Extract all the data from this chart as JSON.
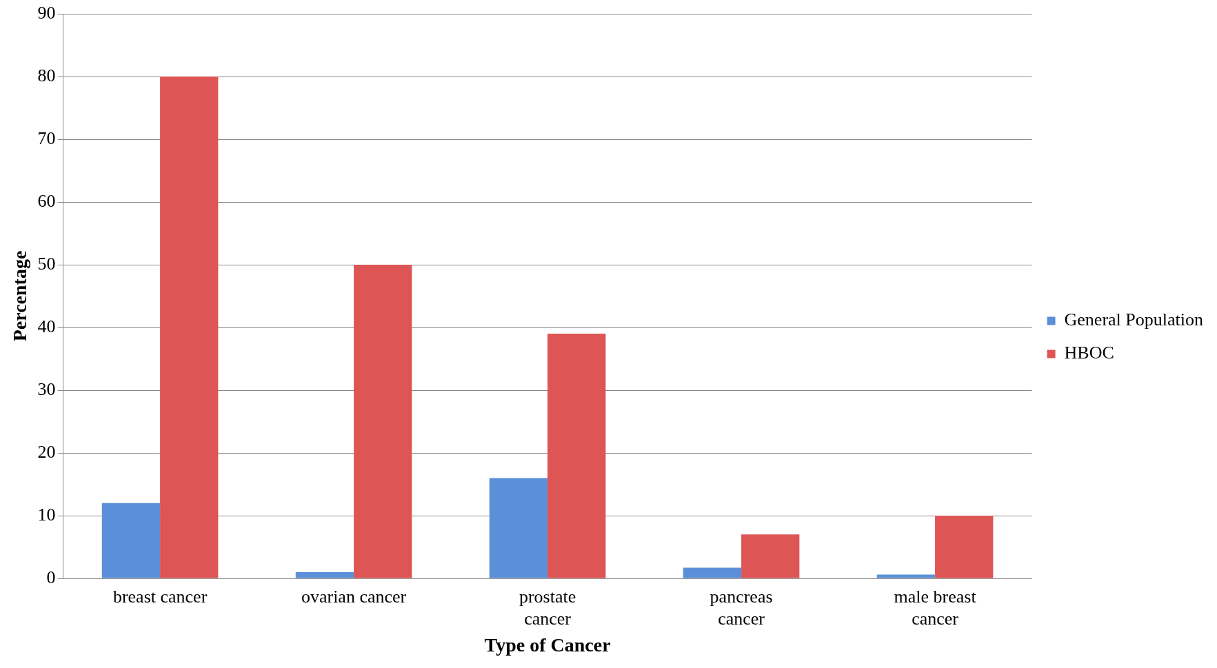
{
  "chart_data": {
    "type": "bar",
    "xlabel": "Type of Cancer",
    "ylabel": "Percentage",
    "categories": [
      "breast cancer",
      "ovarian cancer",
      "prostate  cancer",
      "pancreas cancer",
      "male breast cancer"
    ],
    "series": [
      {
        "name": "General Population",
        "color": "#5b8fd8",
        "values": [
          12,
          1,
          16,
          1.7,
          0.6
        ]
      },
      {
        "name": "HBOC",
        "color": "#dd5555",
        "values": [
          80,
          50,
          39,
          7,
          10
        ]
      }
    ],
    "ylim": [
      0,
      90
    ],
    "yticks": [
      0,
      10,
      20,
      30,
      40,
      50,
      60,
      70,
      80,
      90
    ],
    "grid": "y",
    "legend": "right"
  }
}
